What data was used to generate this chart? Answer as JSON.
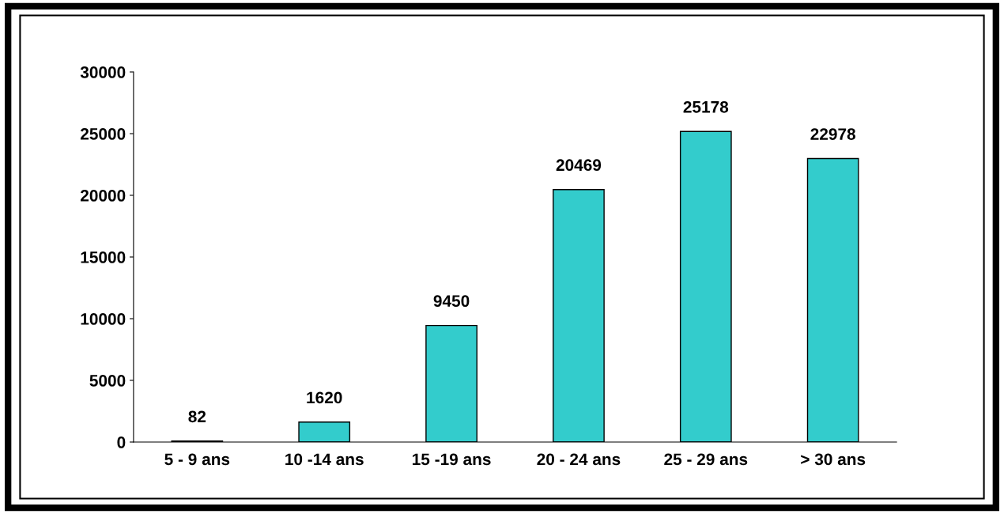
{
  "chart_data": {
    "type": "bar",
    "categories": [
      "5 - 9 ans",
      "10 -14 ans",
      "15 -19 ans",
      "20 - 24 ans",
      "25 - 29 ans",
      "> 30 ans"
    ],
    "values": [
      82,
      1620,
      9450,
      20469,
      25178,
      22978
    ],
    "color": "#33cccc",
    "ylim": [
      0,
      30000
    ],
    "yticks": [
      0,
      5000,
      10000,
      15000,
      20000,
      25000,
      30000
    ],
    "data_labels": true,
    "grid": false,
    "legend": false
  }
}
